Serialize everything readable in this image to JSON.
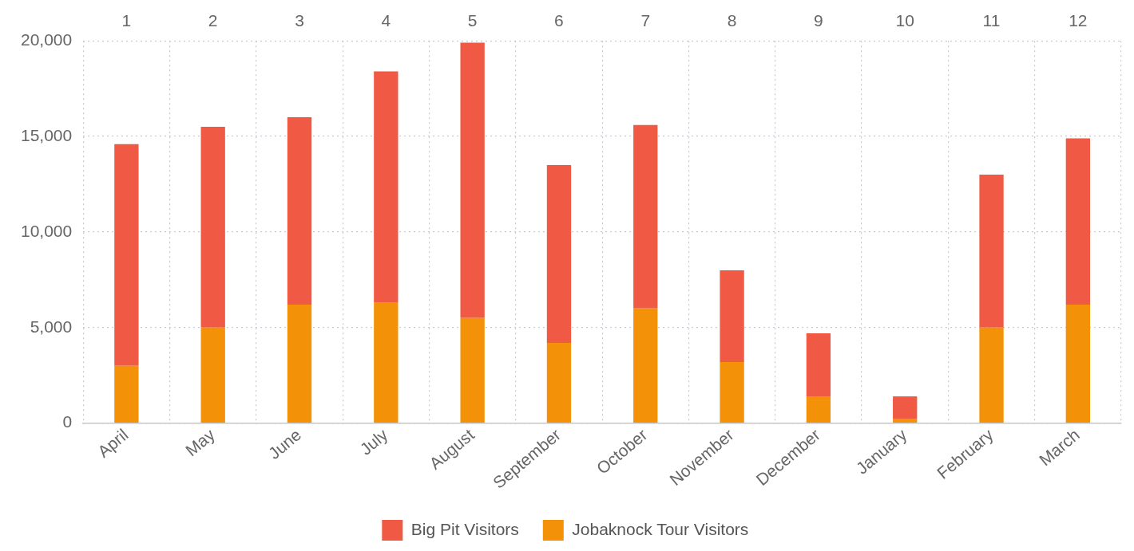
{
  "chart_data": {
    "type": "bar",
    "stacked": true,
    "categories": [
      "April",
      "May",
      "June",
      "July",
      "August",
      "September",
      "October",
      "November",
      "December",
      "January",
      "February",
      "March"
    ],
    "series": [
      {
        "name": "Jobaknock Tour Visitors",
        "color": "#f39208",
        "values": [
          3000,
          5000,
          6200,
          6300,
          5500,
          4200,
          6000,
          3200,
          1400,
          200,
          5000,
          6200
        ]
      },
      {
        "name": "Big Pit Visitors",
        "color": "#f05a44",
        "values": [
          11600,
          10500,
          9800,
          12100,
          14400,
          9300,
          9600,
          4800,
          3300,
          1200,
          8000,
          8700
        ]
      }
    ],
    "ylim": [
      0,
      20000
    ],
    "yticks": [
      0,
      {
        "value": 5000,
        "label": "5,000"
      },
      {
        "value": 10000,
        "label": "10,000"
      },
      {
        "value": 15000,
        "label": "15,000"
      },
      {
        "value": 20000,
        "label": "20,000"
      }
    ],
    "x2lim": [
      0.5,
      12.5
    ],
    "x2ticks": [
      1,
      2,
      3,
      4,
      5,
      6,
      7,
      8,
      9,
      10,
      11,
      12
    ],
    "grid": true,
    "legend": "bottom"
  }
}
